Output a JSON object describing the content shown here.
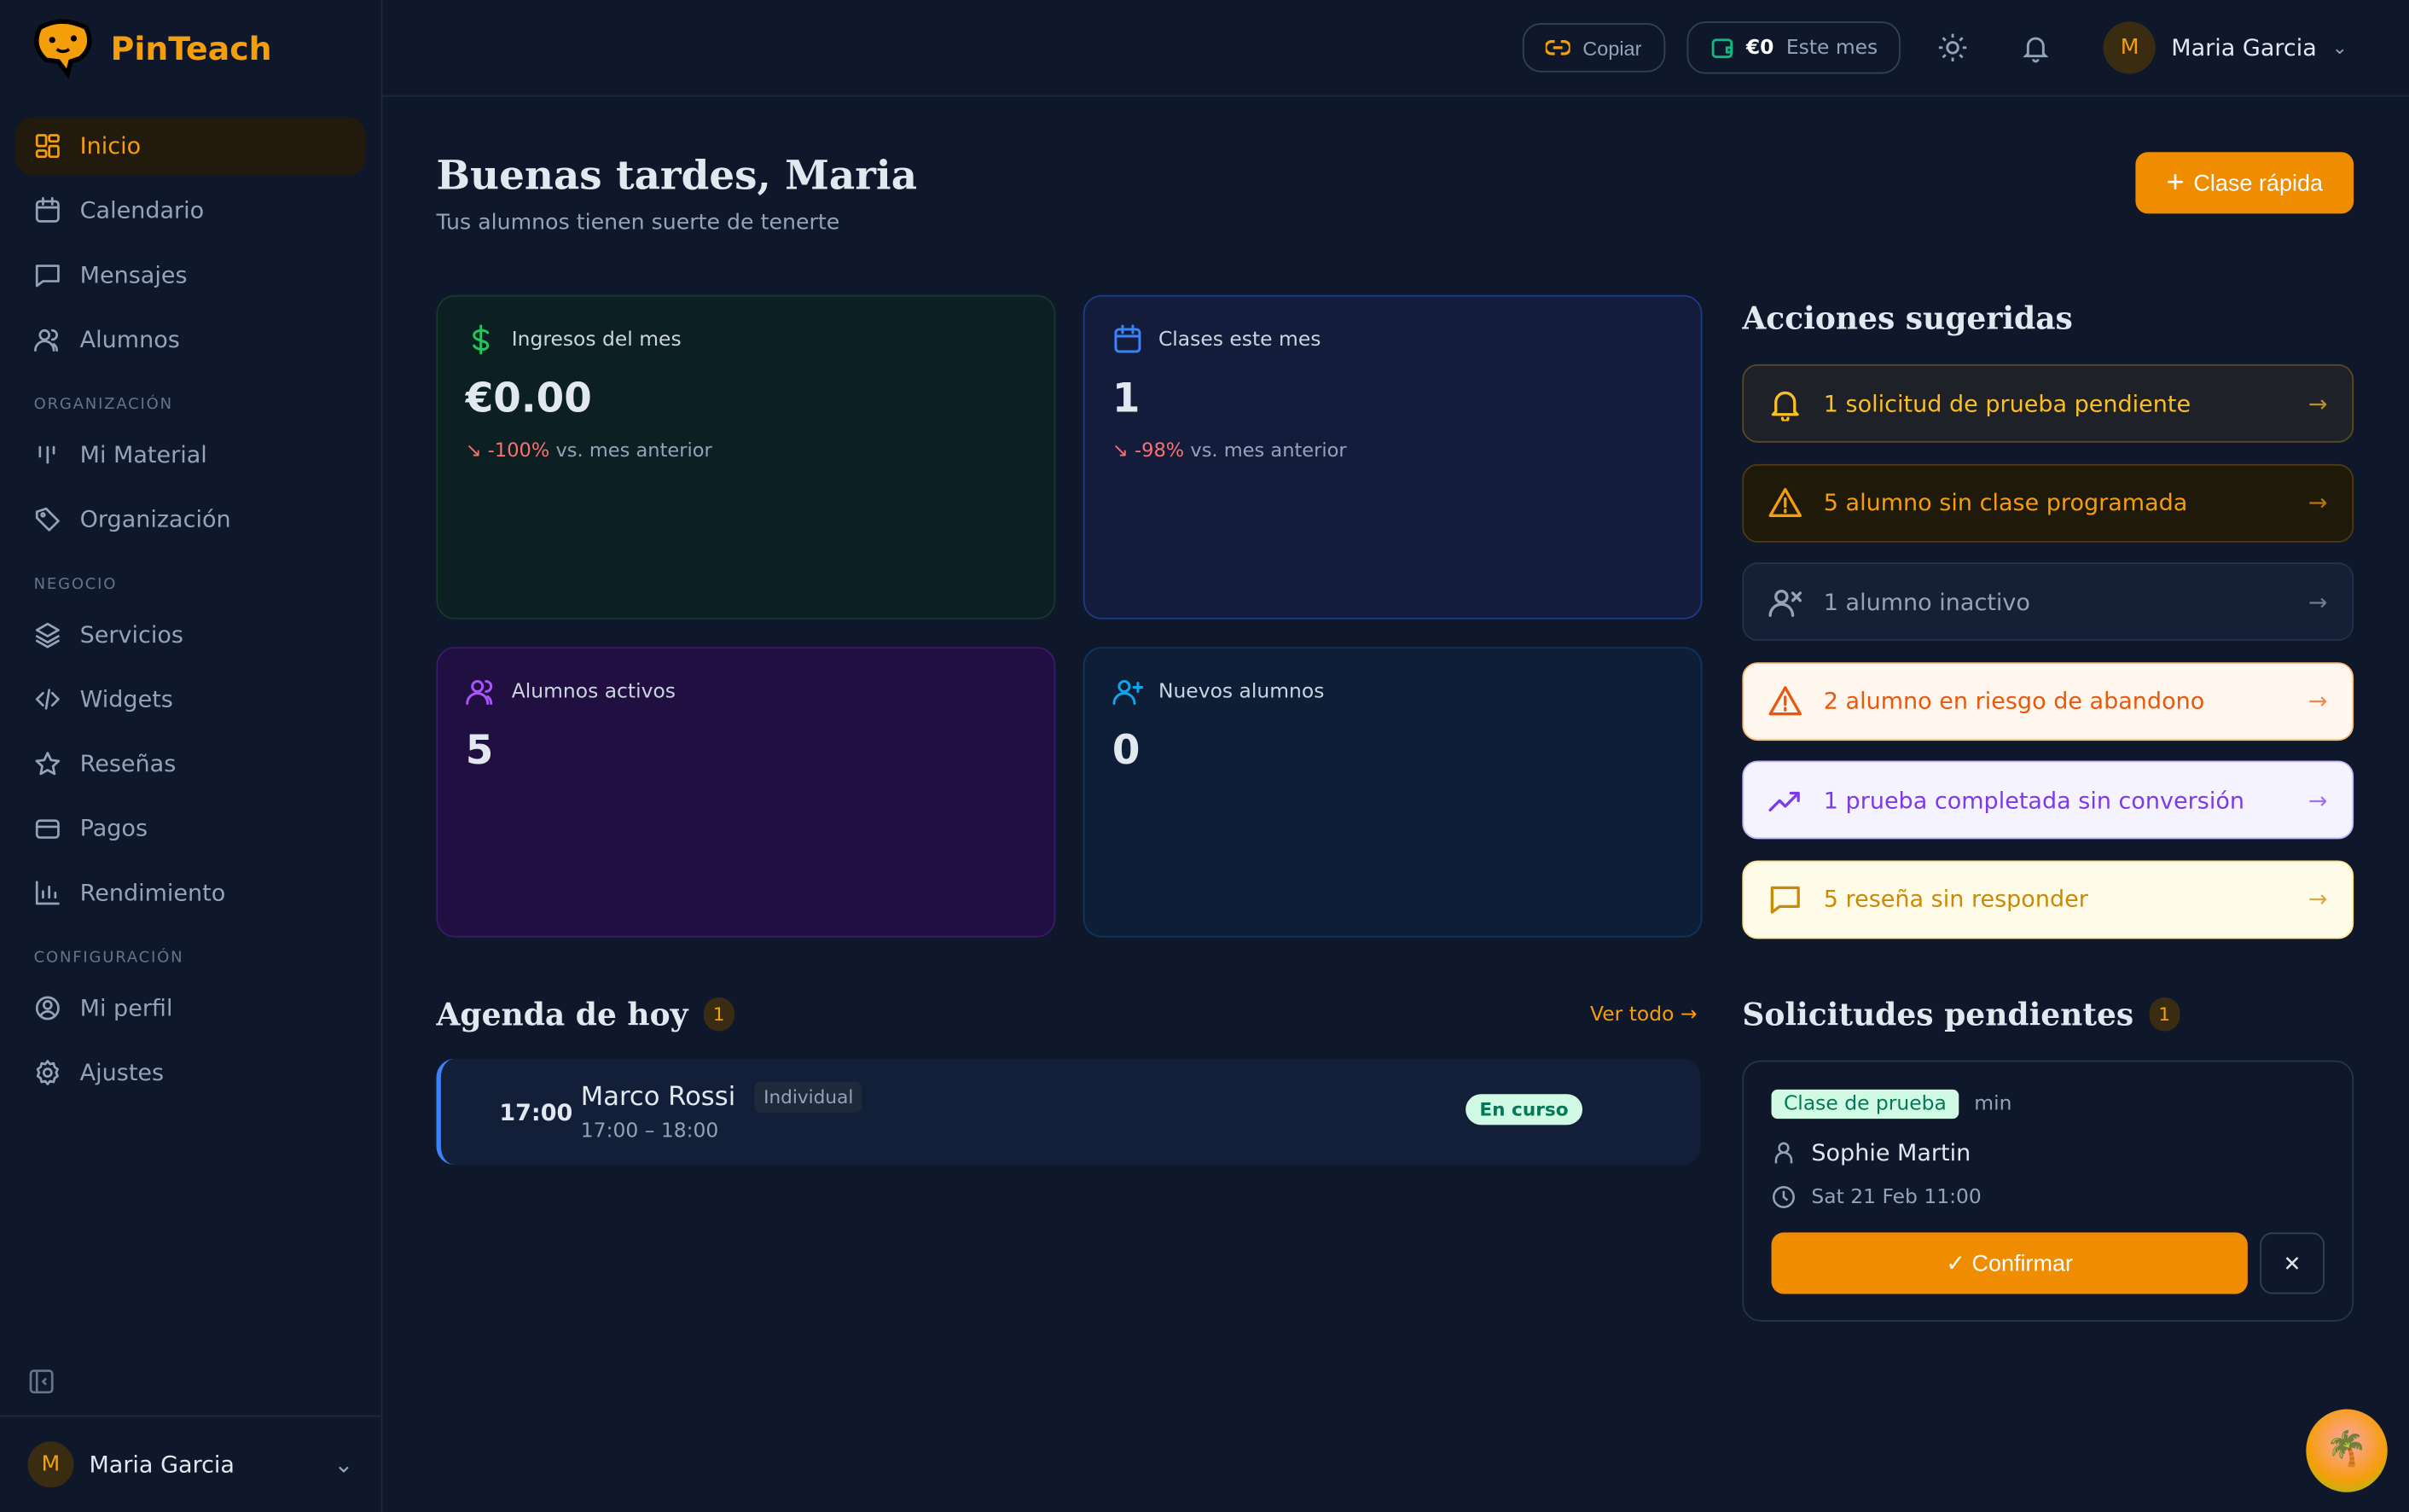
{
  "app": {
    "name": "PinTeach",
    "accent": "#f59e0b"
  },
  "sidebar": {
    "items": [
      {
        "label": "Inicio",
        "icon": "grid-icon",
        "active": true
      },
      {
        "label": "Calendario",
        "icon": "calendar-icon"
      },
      {
        "label": "Mensajes",
        "icon": "message-icon"
      },
      {
        "label": "Alumnos",
        "icon": "users-icon"
      }
    ],
    "sections": [
      {
        "title": "ORGANIZACIÓN",
        "items": [
          {
            "label": "Mi Material",
            "icon": "material-icon"
          },
          {
            "label": "Organización",
            "icon": "tag-icon"
          }
        ]
      },
      {
        "title": "NEGOCIO",
        "items": [
          {
            "label": "Servicios",
            "icon": "layers-icon"
          },
          {
            "label": "Widgets",
            "icon": "code-icon"
          },
          {
            "label": "Reseñas",
            "icon": "star-icon"
          },
          {
            "label": "Pagos",
            "icon": "credit-card-icon"
          },
          {
            "label": "Rendimiento",
            "icon": "bar-chart-icon"
          }
        ]
      },
      {
        "title": "CONFIGURACIÓN",
        "items": [
          {
            "label": "Mi perfil",
            "icon": "user-circle-icon"
          },
          {
            "label": "Ajustes",
            "icon": "gear-icon"
          }
        ]
      }
    ],
    "user": {
      "initial": "M",
      "name": "Maria Garcia"
    }
  },
  "topbar": {
    "copy_label": "Copiar",
    "earnings_value": "€0",
    "earnings_label": "Este mes",
    "user_initial": "M",
    "user_name": "Maria Garcia"
  },
  "header": {
    "title": "Buenas tardes, Maria",
    "subtitle": "Tus alumnos tienen suerte de tenerte",
    "quick_button": "Clase rápida"
  },
  "stats": [
    {
      "label": "Ingresos del mes",
      "value": "€0.00",
      "change": "-100%",
      "change_suffix": "vs. mes anterior",
      "color": "#22c55e"
    },
    {
      "label": "Clases este mes",
      "value": "1",
      "change": "-98%",
      "change_suffix": "vs. mes anterior",
      "color": "#3b82f6"
    },
    {
      "label": "Alumnos activos",
      "value": "5",
      "color": "#a855f7"
    },
    {
      "label": "Nuevos alumnos",
      "value": "0",
      "color": "#0ea5e9"
    }
  ],
  "suggestions": {
    "title": "Acciones sugeridas",
    "items": [
      {
        "text": "1 solicitud de prueba pendiente",
        "icon": "bell-icon",
        "color": "#fbbf24"
      },
      {
        "text": "5 alumno sin clase programada",
        "icon": "warning-icon",
        "color": "#f59e0b"
      },
      {
        "text": "1 alumno inactivo",
        "icon": "user-x-icon",
        "color": "#94a3b8"
      },
      {
        "text": "2 alumno en riesgo de abandono",
        "icon": "warning-icon",
        "color": "#ea580c"
      },
      {
        "text": "1 prueba completada sin conversión",
        "icon": "trending-up-icon",
        "color": "#7c3aed"
      },
      {
        "text": "5 reseña sin responder",
        "icon": "message-icon",
        "color": "#ca8a04"
      }
    ]
  },
  "agenda": {
    "title": "Agenda de hoy",
    "count": "1",
    "view_all": "Ver todo",
    "items": [
      {
        "time": "17:00",
        "name": "Marco Rossi",
        "type": "Individual",
        "range": "17:00 – 18:00",
        "status": "En curso"
      }
    ]
  },
  "requests": {
    "title": "Solicitudes pendientes",
    "count": "1",
    "items": [
      {
        "tag": "Clase de prueba",
        "duration": "min",
        "student": "Sophie Martin",
        "datetime": "Sat 21 Feb 11:00",
        "confirm": "Confirmar"
      }
    ]
  }
}
